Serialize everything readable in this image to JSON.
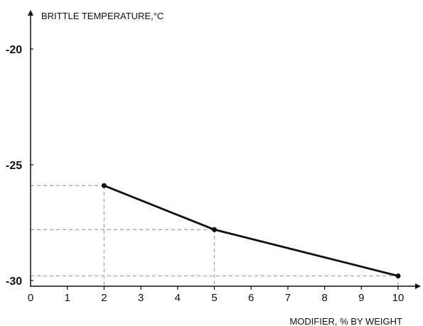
{
  "chart_data": {
    "type": "line",
    "ylabel": "BRITTLE TEMPERATURE,°C",
    "xlabel": "MODIFIER, % BY WEIGHT",
    "x_ticks": [
      0,
      1,
      2,
      3,
      4,
      5,
      6,
      7,
      8,
      9,
      10
    ],
    "y_ticks": [
      -20,
      -25,
      -30
    ],
    "xlim": [
      0,
      10.6
    ],
    "ylim": [
      -35.5,
      -18.5
    ],
    "grid": false,
    "guide_lines": "dashed",
    "colors": {
      "line": "#111111",
      "guide": "#aaaaaa",
      "axis": "#111111"
    },
    "series": [
      {
        "x": [
          2,
          5,
          10
        ],
        "y": [
          -25.9,
          -27.8,
          -29.8
        ]
      }
    ]
  }
}
